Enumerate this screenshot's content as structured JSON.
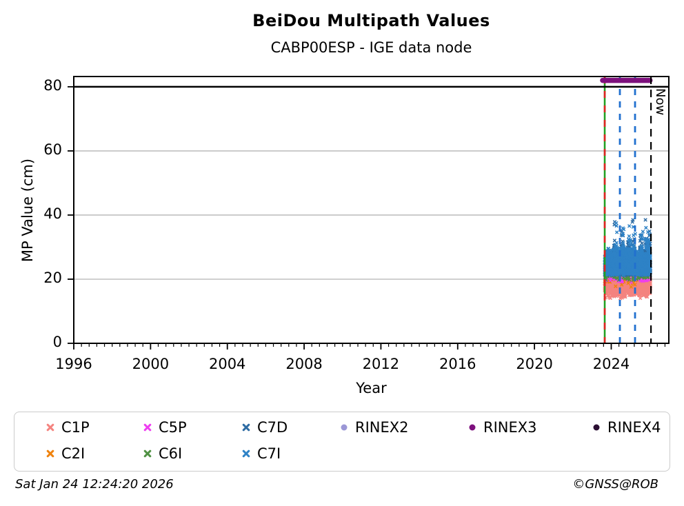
{
  "chart_data": {
    "type": "scatter",
    "title": "BeiDou Multipath Values",
    "subtitle": "CABP00ESP - IGE data node",
    "xlabel": "Year",
    "ylabel": "MP Value (cm)",
    "xlim": [
      1996,
      2027.0
    ],
    "ylim": [
      0,
      83.2
    ],
    "xticks": [
      1996,
      2000,
      2004,
      2008,
      2012,
      2016,
      2020,
      2024
    ],
    "yticks": [
      0,
      20,
      40,
      60,
      80
    ],
    "x_minor_step": 0.4,
    "grid": {
      "horizontal": true,
      "color": "#b3b3b3"
    },
    "series": [
      {
        "name": "C1P",
        "marker": "x",
        "color": "#f4837f",
        "x_start": 2023.66,
        "x_end": 2026.04,
        "value_typical": 18.0,
        "value_min": 14.0,
        "value_max": 21.8,
        "spread": 1.5,
        "n": 2100
      },
      {
        "name": "C2I",
        "marker": "x",
        "color": "#ef820d",
        "x_start": 2023.66,
        "x_end": 2025.5,
        "value_typical": 19.5,
        "value_min": 17.5,
        "value_max": 21.2,
        "spread": 0.9,
        "n": 45
      },
      {
        "name": "C5P",
        "marker": "x",
        "color": "#ee3df0",
        "x_start": 2023.66,
        "x_end": 2026.0,
        "value_typical": 20.6,
        "value_min": 19.0,
        "value_max": 22.2,
        "spread": 0.8,
        "n": 95
      },
      {
        "name": "C6I",
        "marker": "x",
        "color": "#4f9143",
        "x_start": 2023.66,
        "x_end": 2026.0,
        "value_typical": 21.0,
        "value_min": 19.5,
        "value_max": 22.6,
        "spread": 0.8,
        "n": 70
      },
      {
        "name": "C7D",
        "marker": "x",
        "color": "#2d6ba3",
        "x_start": 2023.66,
        "x_end": 2026.04,
        "value_typical": 24.2,
        "value_min": 21.2,
        "value_max": 29.5,
        "spread": 1.9,
        "n": 1700,
        "spike_max": 38.5,
        "spike_n": 95,
        "spike_x": [
          2024.2,
          2024.55,
          2024.9,
          2025.15,
          2025.55,
          2025.8,
          2025.97
        ]
      },
      {
        "name": "C7I",
        "marker": "x",
        "color": "#2e82c6",
        "x_start": 2023.66,
        "x_end": 2026.04,
        "value_typical": 24.8,
        "value_min": 21.2,
        "value_max": 30.0,
        "spread": 1.9,
        "n": 1700,
        "spike_max": 37.5,
        "spike_n": 90,
        "spike_x": [
          2024.25,
          2024.6,
          2024.95,
          2025.2,
          2025.6,
          2025.85,
          2025.95
        ]
      }
    ],
    "annotations": {
      "threshold_line": {
        "y": 80,
        "color": "#000000"
      },
      "data_start_line": {
        "x": 2023.66,
        "solid_color": "#22a022",
        "dash_color": "#e02222"
      },
      "event_lines": [
        {
          "x": 2024.45
        },
        {
          "x": 2025.24
        }
      ],
      "event_line_color": "#2170cf",
      "rinex3_span": {
        "label": "RINEX3",
        "y": 82.0,
        "x_start": 2023.55,
        "x_end": 2026.02,
        "color": "#7d107d"
      },
      "now_line": {
        "x": 2026.07,
        "color": "#000000",
        "label": "Now"
      }
    },
    "legend": {
      "items": [
        {
          "label": "C1P",
          "marker": "x",
          "color": "#f4837f"
        },
        {
          "label": "C5P",
          "marker": "x",
          "color": "#ee3df0"
        },
        {
          "label": "C7D",
          "marker": "x",
          "color": "#2d6ba3"
        },
        {
          "label": "RINEX2",
          "marker": "circle",
          "color": "#9b97d6"
        },
        {
          "label": "RINEX3",
          "marker": "circle",
          "color": "#7d107d"
        },
        {
          "label": "RINEX4",
          "marker": "circle",
          "color": "#2b0f33"
        },
        {
          "label": "C2I",
          "marker": "x",
          "color": "#ef820d"
        },
        {
          "label": "C6I",
          "marker": "x",
          "color": "#4f9143"
        },
        {
          "label": "C7I",
          "marker": "x",
          "color": "#2e82c6"
        }
      ]
    }
  },
  "footer": {
    "left": "Sat Jan 24 12:24:20 2026",
    "right": "©GNSS@ROB"
  }
}
